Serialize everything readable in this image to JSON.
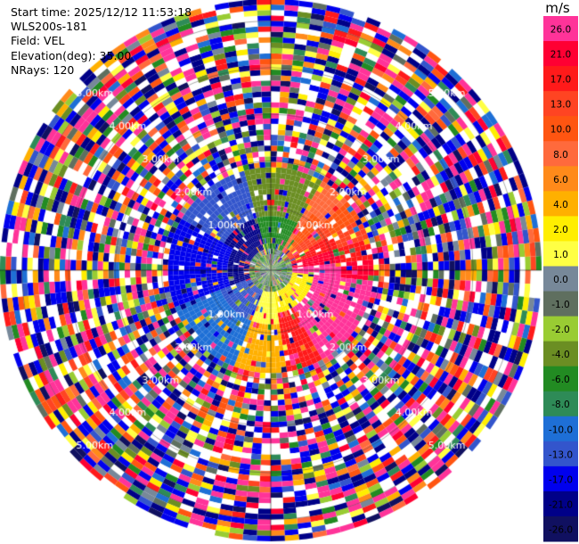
{
  "header": {
    "start_time": "Start time: 2025/12/12 11:53:18",
    "instrument": "WLS200s-181",
    "field": "Field: VEL",
    "elevation": "Elevation(deg): 35.00",
    "nrays": "NRays: 120"
  },
  "chart_data": {
    "type": "heatmap",
    "projection": "polar",
    "nrays": 120,
    "range_rings": [
      "1.00km",
      "2.00km",
      "3.00km",
      "4.00km",
      "5.00km"
    ],
    "max_range_km": 5.0,
    "colorbar": {
      "unit": "m/s",
      "ticks": [
        "26.0",
        "21.0",
        "17.0",
        "13.0",
        "10.0",
        "8.0",
        "6.0",
        "4.0",
        "2.0",
        "1.0",
        "0.0",
        "-1.0",
        "-2.0",
        "-4.0",
        "-6.0",
        "-8.0",
        "-10.0",
        "-13.0",
        "-17.0",
        "-21.0",
        "-26.0",
        "-30.0"
      ],
      "colors": [
        "#ff3399",
        "#ff0033",
        "#ff1a1a",
        "#ff4422",
        "#ff5511",
        "#ff6a3c",
        "#ff8a1a",
        "#ffb000",
        "#ffee00",
        "#ffff44",
        "#778899",
        "#5f6f5f",
        "#99cc33",
        "#6b8e23",
        "#228b22",
        "#2e8b57",
        "#1e6fd6",
        "#3355cc",
        "#0000ee",
        "#000088",
        "#101060"
      ]
    }
  }
}
